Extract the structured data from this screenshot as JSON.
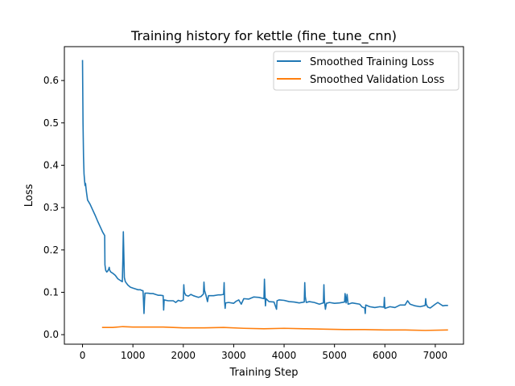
{
  "chart_data": {
    "type": "line",
    "title": "Training history for kettle (fine_tune_cnn)",
    "xlabel": "Training Step",
    "ylabel": "Loss",
    "xlim": [
      -360,
      7560
    ],
    "ylim": [
      -0.0225,
      0.68
    ],
    "xticks": [
      0,
      1000,
      2000,
      3000,
      4000,
      5000,
      6000,
      7000
    ],
    "yticks": [
      0.0,
      0.1,
      0.2,
      0.3,
      0.4,
      0.5,
      0.6
    ],
    "ytick_labels": [
      "0.0",
      "0.1",
      "0.2",
      "0.3",
      "0.4",
      "0.5",
      "0.6"
    ],
    "grid": false,
    "legend_position": "upper-right",
    "series": [
      {
        "name": "Smoothed Training Loss",
        "color": "#1f77b4",
        "points": [
          [
            0,
            0.647
          ],
          [
            10,
            0.5
          ],
          [
            20,
            0.42
          ],
          [
            30,
            0.38
          ],
          [
            40,
            0.365
          ],
          [
            50,
            0.352
          ],
          [
            60,
            0.357
          ],
          [
            70,
            0.345
          ],
          [
            80,
            0.335
          ],
          [
            100,
            0.318
          ],
          [
            150,
            0.308
          ],
          [
            200,
            0.295
          ],
          [
            250,
            0.282
          ],
          [
            300,
            0.268
          ],
          [
            350,
            0.255
          ],
          [
            400,
            0.242
          ],
          [
            420,
            0.238
          ],
          [
            440,
            0.234
          ],
          [
            445,
            0.165
          ],
          [
            460,
            0.152
          ],
          [
            480,
            0.148
          ],
          [
            500,
            0.15
          ],
          [
            520,
            0.155
          ],
          [
            530,
            0.159
          ],
          [
            540,
            0.152
          ],
          [
            560,
            0.148
          ],
          [
            600,
            0.145
          ],
          [
            650,
            0.14
          ],
          [
            700,
            0.132
          ],
          [
            750,
            0.128
          ],
          [
            790,
            0.125
          ],
          [
            800,
            0.175
          ],
          [
            810,
            0.243
          ],
          [
            820,
            0.19
          ],
          [
            830,
            0.135
          ],
          [
            850,
            0.125
          ],
          [
            900,
            0.117
          ],
          [
            950,
            0.112
          ],
          [
            1000,
            0.11
          ],
          [
            1050,
            0.108
          ],
          [
            1100,
            0.106
          ],
          [
            1150,
            0.106
          ],
          [
            1180,
            0.104
          ],
          [
            1200,
            0.104
          ],
          [
            1210,
            0.08
          ],
          [
            1220,
            0.05
          ],
          [
            1230,
            0.08
          ],
          [
            1240,
            0.098
          ],
          [
            1300,
            0.098
          ],
          [
            1350,
            0.097
          ],
          [
            1400,
            0.097
          ],
          [
            1450,
            0.095
          ],
          [
            1500,
            0.093
          ],
          [
            1550,
            0.093
          ],
          [
            1600,
            0.092
          ],
          [
            1610,
            0.058
          ],
          [
            1620,
            0.082
          ],
          [
            1700,
            0.08
          ],
          [
            1800,
            0.08
          ],
          [
            1850,
            0.076
          ],
          [
            1900,
            0.081
          ],
          [
            1950,
            0.079
          ],
          [
            2000,
            0.082
          ],
          [
            2010,
            0.118
          ],
          [
            2020,
            0.1
          ],
          [
            2050,
            0.093
          ],
          [
            2100,
            0.091
          ],
          [
            2150,
            0.095
          ],
          [
            2200,
            0.092
          ],
          [
            2250,
            0.09
          ],
          [
            2300,
            0.088
          ],
          [
            2350,
            0.09
          ],
          [
            2400,
            0.096
          ],
          [
            2410,
            0.124
          ],
          [
            2420,
            0.105
          ],
          [
            2450,
            0.093
          ],
          [
            2480,
            0.078
          ],
          [
            2500,
            0.092
          ],
          [
            2600,
            0.092
          ],
          [
            2700,
            0.094
          ],
          [
            2750,
            0.094
          ],
          [
            2800,
            0.095
          ],
          [
            2810,
            0.123
          ],
          [
            2820,
            0.078
          ],
          [
            2830,
            0.062
          ],
          [
            2840,
            0.075
          ],
          [
            2900,
            0.076
          ],
          [
            3000,
            0.074
          ],
          [
            3050,
            0.079
          ],
          [
            3100,
            0.082
          ],
          [
            3150,
            0.072
          ],
          [
            3200,
            0.085
          ],
          [
            3300,
            0.084
          ],
          [
            3400,
            0.089
          ],
          [
            3500,
            0.088
          ],
          [
            3600,
            0.085
          ],
          [
            3610,
            0.131
          ],
          [
            3620,
            0.098
          ],
          [
            3630,
            0.068
          ],
          [
            3640,
            0.085
          ],
          [
            3700,
            0.078
          ],
          [
            3800,
            0.077
          ],
          [
            3850,
            0.06
          ],
          [
            3860,
            0.08
          ],
          [
            3900,
            0.082
          ],
          [
            4000,
            0.081
          ],
          [
            4100,
            0.078
          ],
          [
            4200,
            0.077
          ],
          [
            4300,
            0.075
          ],
          [
            4400,
            0.077
          ],
          [
            4410,
            0.123
          ],
          [
            4420,
            0.09
          ],
          [
            4440,
            0.076
          ],
          [
            4500,
            0.078
          ],
          [
            4600,
            0.076
          ],
          [
            4700,
            0.072
          ],
          [
            4780,
            0.075
          ],
          [
            4790,
            0.118
          ],
          [
            4800,
            0.08
          ],
          [
            4820,
            0.06
          ],
          [
            4840,
            0.074
          ],
          [
            4900,
            0.076
          ],
          [
            5000,
            0.074
          ],
          [
            5100,
            0.075
          ],
          [
            5200,
            0.077
          ],
          [
            5210,
            0.097
          ],
          [
            5230,
            0.075
          ],
          [
            5250,
            0.095
          ],
          [
            5270,
            0.072
          ],
          [
            5300,
            0.073
          ],
          [
            5350,
            0.075
          ],
          [
            5400,
            0.074
          ],
          [
            5500,
            0.072
          ],
          [
            5550,
            0.065
          ],
          [
            5600,
            0.063
          ],
          [
            5610,
            0.05
          ],
          [
            5620,
            0.07
          ],
          [
            5700,
            0.066
          ],
          [
            5800,
            0.064
          ],
          [
            5900,
            0.066
          ],
          [
            5980,
            0.065
          ],
          [
            5990,
            0.088
          ],
          [
            6000,
            0.062
          ],
          [
            6100,
            0.066
          ],
          [
            6200,
            0.064
          ],
          [
            6300,
            0.07
          ],
          [
            6400,
            0.07
          ],
          [
            6450,
            0.08
          ],
          [
            6500,
            0.072
          ],
          [
            6600,
            0.068
          ],
          [
            6700,
            0.066
          ],
          [
            6800,
            0.069
          ],
          [
            6810,
            0.085
          ],
          [
            6820,
            0.072
          ],
          [
            6850,
            0.065
          ],
          [
            6900,
            0.063
          ],
          [
            7000,
            0.072
          ],
          [
            7050,
            0.076
          ],
          [
            7100,
            0.072
          ],
          [
            7150,
            0.068
          ],
          [
            7200,
            0.069
          ],
          [
            7240,
            0.069
          ]
        ]
      },
      {
        "name": "Smoothed Validation Loss",
        "color": "#ff7f0e",
        "points": [
          [
            400,
            0.017
          ],
          [
            600,
            0.017
          ],
          [
            800,
            0.019
          ],
          [
            1000,
            0.018
          ],
          [
            1200,
            0.018
          ],
          [
            1400,
            0.018
          ],
          [
            1600,
            0.018
          ],
          [
            1800,
            0.017
          ],
          [
            2000,
            0.016
          ],
          [
            2200,
            0.016
          ],
          [
            2400,
            0.016
          ],
          [
            2800,
            0.017
          ],
          [
            3200,
            0.015
          ],
          [
            3600,
            0.014
          ],
          [
            4000,
            0.015
          ],
          [
            4400,
            0.014
          ],
          [
            4800,
            0.013
          ],
          [
            5200,
            0.012
          ],
          [
            5600,
            0.012
          ],
          [
            6000,
            0.011
          ],
          [
            6400,
            0.011
          ],
          [
            6800,
            0.01
          ],
          [
            7240,
            0.011
          ]
        ]
      }
    ]
  }
}
